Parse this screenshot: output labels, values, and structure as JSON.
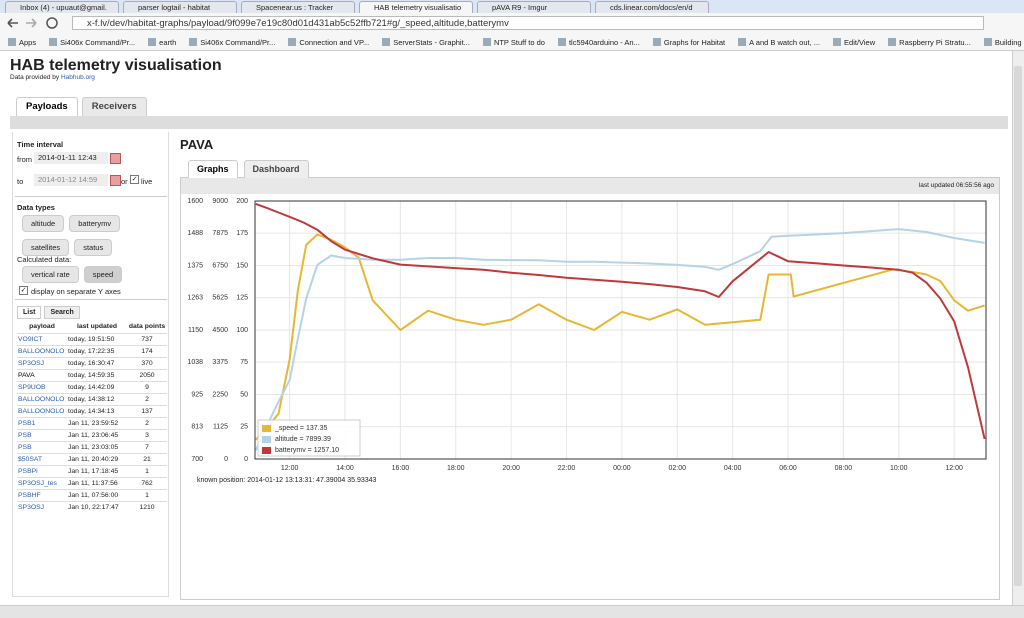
{
  "browser": {
    "tabs": [
      "Inbox (4) - upuaut@gmail.",
      "parser logtail - habitat",
      "Spacenear.us : Tracker",
      "HAB telemetry visualisatio",
      "pAVA R9 - Imgur",
      "cds.linear.com/docs/en/d"
    ],
    "url": "x-f.lv/dev/habitat-graphs/payload/9f099e7e19c80d01d431ab5c52ffb721#g/_speed,altitude,batterymv",
    "bookmarks": [
      "Apps",
      "Si406x Command/Pr...",
      "earth",
      "Si406x Command/Pr...",
      "Connection and VP...",
      "ServerStats - Graphit...",
      "NTP Stuff to do",
      "tlc5940arduino - An...",
      "Graphs for Habitat",
      "A and B watch out, ...",
      "Edit/View",
      "Raspberry Pi Stratu...",
      "Building a Raspberry..."
    ]
  },
  "header": {
    "title": "HAB telemetry visualisation",
    "credit": "Data provided by",
    "credit_link": "Habhub.org"
  },
  "top_tabs": [
    "Payloads",
    "Receivers"
  ],
  "sidebar": {
    "time_interval": "Time interval",
    "from_label": "from",
    "from_value": "2014-01-11 12:43",
    "to_label": "to",
    "to_value": "2014-01-12 14:59",
    "or": "or",
    "live": "live",
    "data_types": "Data types",
    "type_buttons": [
      "altitude",
      "batterymv",
      "satellites",
      "status"
    ],
    "calculated": "Calculated data:",
    "calc_buttons": [
      "vertical rate",
      "speed"
    ],
    "separate_axes": "display on separate Y axes",
    "list_tabs": [
      "List",
      "Search"
    ],
    "table": {
      "columns": [
        "payload",
        "last updated",
        "data points"
      ],
      "rows": [
        [
          "VO9ICT",
          "today, 19:51:50",
          737
        ],
        [
          "BALLOONOLO",
          "today, 17:22:35",
          174
        ],
        [
          "SP3OSJ",
          "today, 16:30:47",
          370
        ],
        [
          "PAVA",
          "today, 14:59:35",
          2050
        ],
        [
          "SP9UOB",
          "today, 14:42:09",
          9
        ],
        [
          "BALLOONOLO",
          "today, 14:38:12",
          2
        ],
        [
          "BALLOONOLO",
          "today, 14:34:13",
          137
        ],
        [
          "PSB1",
          "Jan 11, 23:59:52",
          2
        ],
        [
          "PSB",
          "Jan 11, 23:06:45",
          3
        ],
        [
          "PSB",
          "Jan 11, 23:03:05",
          7
        ],
        [
          "$50SAT",
          "Jan 11, 20:40:29",
          21
        ],
        [
          "PSBPi",
          "Jan 11, 17:18:45",
          1
        ],
        [
          "SP3OSJ_tes",
          "Jan 11, 11:37:56",
          762
        ],
        [
          "PSBHF",
          "Jan 11, 07:56:00",
          1
        ],
        [
          "SP3OSJ",
          "Jan 10, 22:17:47",
          1210
        ]
      ]
    }
  },
  "main": {
    "title": "PAVA",
    "tabs": [
      "Graphs",
      "Dashboard"
    ],
    "last_updated": "last updated 06:55:56 ago",
    "known_position": "known position: 2014-01-12 13:13:31: 47.39004 35.93343"
  },
  "chart_data": {
    "type": "line",
    "grid": true,
    "xlim": [
      10.75,
      37.15
    ],
    "xticks": [
      {
        "value": 12,
        "label": "12:00"
      },
      {
        "value": 14,
        "label": "14:00"
      },
      {
        "value": 16,
        "label": "16:00"
      },
      {
        "value": 18,
        "label": "18:00"
      },
      {
        "value": 20,
        "label": "20:00"
      },
      {
        "value": 22,
        "label": "22:00"
      },
      {
        "value": 24,
        "label": "00:00"
      },
      {
        "value": 26,
        "label": "02:00"
      },
      {
        "value": 28,
        "label": "04:00"
      },
      {
        "value": 30,
        "label": "06:00"
      },
      {
        "value": 32,
        "label": "08:00"
      },
      {
        "value": 34,
        "label": "10:00"
      },
      {
        "value": 36,
        "label": "12:00"
      }
    ],
    "ylim": [
      700,
      1600
    ],
    "yticks": [
      700,
      813,
      925,
      1038,
      1150,
      1263,
      1375,
      1488,
      1600
    ],
    "y2lim": [
      0,
      9000
    ],
    "y2ticks": [
      0,
      1125,
      2250,
      3375,
      4500,
      5625,
      6750,
      7875,
      9000
    ],
    "y3lim": [
      0,
      200
    ],
    "y3ticks": [
      0,
      25,
      50,
      75,
      100,
      125,
      150,
      175,
      200
    ],
    "series": [
      {
        "name": "_speed = 137.35",
        "color": "#e6b733",
        "axis": "y3",
        "x": [
          10.78,
          11.2,
          11.6,
          12,
          12.3,
          12.6,
          13,
          13.5,
          14,
          14.5,
          15,
          16,
          17,
          18,
          19,
          20,
          21,
          22,
          23,
          24,
          25,
          26,
          27,
          28,
          29,
          29.3,
          30.1,
          30.2,
          33.8,
          34.5,
          35,
          35.5,
          36,
          36.5,
          37.1
        ],
        "values": [
          15,
          25,
          35,
          77,
          131,
          166,
          174,
          170,
          164,
          156,
          123,
          100,
          115,
          108,
          104,
          108,
          120,
          108,
          100,
          114,
          108,
          116,
          104,
          106,
          108,
          143,
          143,
          126,
          147,
          145,
          143,
          138,
          123,
          115,
          119
        ]
      },
      {
        "name": "altitude = 7899.39",
        "color": "#b5d3e8",
        "axis": "y2",
        "x": [
          10.78,
          11.2,
          11.6,
          12,
          12.3,
          12.6,
          13,
          13.5,
          14,
          15,
          16,
          17,
          18,
          19,
          20,
          21,
          22,
          23,
          24,
          25,
          26,
          27,
          27.5,
          28,
          29,
          29.4,
          30,
          31,
          32,
          33,
          34,
          35,
          36,
          37.1
        ],
        "values": [
          300,
          1200,
          2000,
          2750,
          4200,
          5600,
          6770,
          7100,
          7010,
          6950,
          6950,
          7010,
          7010,
          6950,
          6940,
          6930,
          6880,
          6880,
          6850,
          6820,
          6770,
          6700,
          6600,
          6800,
          7250,
          7750,
          7790,
          7830,
          7880,
          7950,
          8020,
          7920,
          7710,
          7540
        ]
      },
      {
        "name": "batterymv = 1257.10",
        "color": "#c0393a",
        "axis": "y",
        "x": [
          10.78,
          11.2,
          11.6,
          12,
          12.5,
          13,
          13.5,
          14,
          15,
          16,
          17,
          18,
          19,
          20,
          21,
          22,
          23,
          24,
          25,
          26,
          27,
          27.5,
          28,
          29.3,
          30,
          31,
          32,
          33,
          34,
          34.5,
          35,
          35.5,
          36,
          36.5,
          37.1
        ],
        "values": [
          1590,
          1575,
          1560,
          1545,
          1525,
          1500,
          1460,
          1430,
          1400,
          1378,
          1372,
          1366,
          1360,
          1350,
          1342,
          1332,
          1325,
          1318,
          1310,
          1300,
          1285,
          1265,
          1320,
          1422,
          1390,
          1383,
          1375,
          1368,
          1360,
          1350,
          1315,
          1260,
          1180,
          1020,
          770
        ]
      }
    ]
  }
}
